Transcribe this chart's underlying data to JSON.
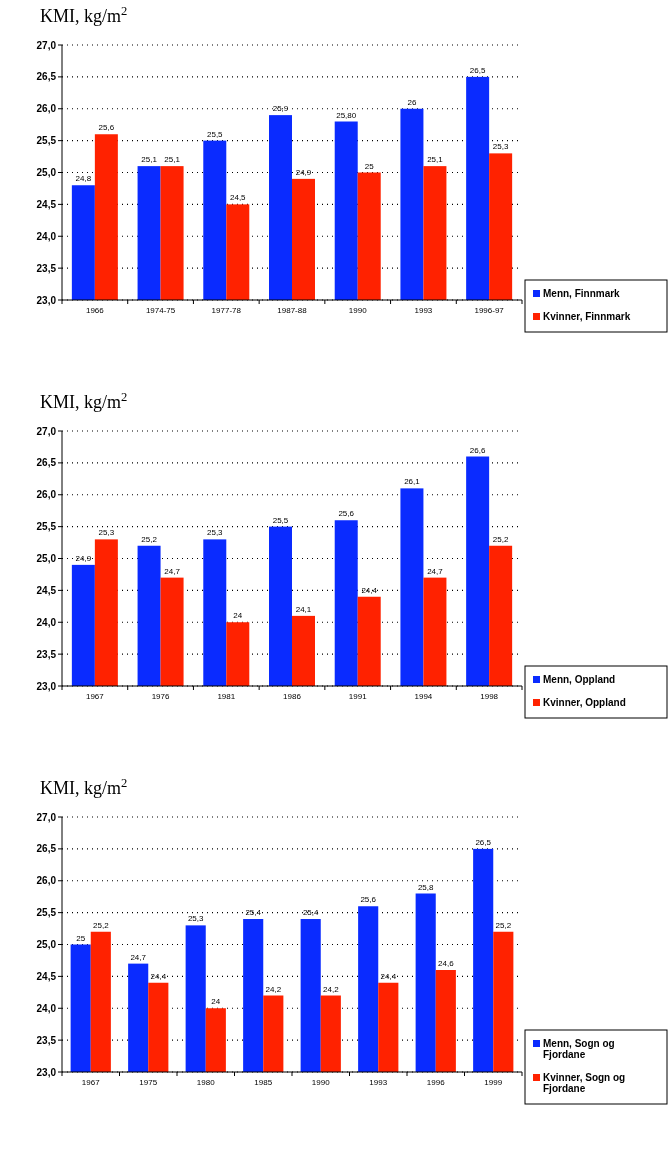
{
  "chart_data": [
    {
      "type": "bar",
      "title": "KMI, kg/m$^{2}$",
      "categories": [
        "1966",
        "1974-75",
        "1977-78",
        "1987-88",
        "1990",
        "1993",
        "1996-97"
      ],
      "series": [
        {
          "name": "Menn, Finnmark",
          "color": "#0a2bff",
          "values": [
            24.8,
            25.1,
            25.5,
            25.9,
            25.8,
            26,
            26.5
          ],
          "value_labels": [
            "24,8",
            "25,1",
            "25,5",
            "25,9",
            "25,80",
            "26",
            "26,5"
          ]
        },
        {
          "name": "Kvinner, Finnmark",
          "color": "#ff2200",
          "values": [
            25.6,
            25.1,
            24.5,
            24.9,
            25,
            25.1,
            25.3
          ],
          "value_labels": [
            "25,6",
            "25,1",
            "24,5",
            "24,9",
            "25",
            "25,1",
            "25,3"
          ]
        }
      ],
      "ylim": [
        23,
        27
      ],
      "yticks": [
        {
          "value": 23,
          "label": "23,0"
        },
        {
          "value": 23.5,
          "label": "23,5"
        },
        {
          "value": 24,
          "label": "24,0"
        },
        {
          "value": 24.5,
          "label": "24,5"
        },
        {
          "value": 25,
          "label": "25,0"
        },
        {
          "value": 25.5,
          "label": "25,5"
        },
        {
          "value": 26,
          "label": "26,0"
        },
        {
          "value": 26.5,
          "label": "26,5"
        },
        {
          "value": 27,
          "label": "27,0"
        }
      ],
      "grid": "y",
      "legend": "bottom right"
    },
    {
      "type": "bar",
      "title": "KMI, kg/m$^{2}$",
      "categories": [
        "1967",
        "1976",
        "1981",
        "1986",
        "1991",
        "1994",
        "1998"
      ],
      "series": [
        {
          "name": "Menn, Oppland",
          "color": "#0a2bff",
          "values": [
            24.9,
            25.2,
            25.3,
            25.5,
            25.6,
            26.1,
            26.6
          ],
          "value_labels": [
            "24,9",
            "25,2",
            "25,3",
            "25,5",
            "25,6",
            "26,1",
            "26,6"
          ]
        },
        {
          "name": "Kvinner, Oppland",
          "color": "#ff2200",
          "values": [
            25.3,
            24.7,
            24,
            24.1,
            24.4,
            24.7,
            25.2
          ],
          "value_labels": [
            "25,3",
            "24,7",
            "24",
            "24,1",
            "24,4",
            "24,7",
            "25,2"
          ]
        }
      ],
      "ylim": [
        23,
        27
      ],
      "yticks": [
        {
          "value": 23,
          "label": "23,0"
        },
        {
          "value": 23.5,
          "label": "23,5"
        },
        {
          "value": 24,
          "label": "24,0"
        },
        {
          "value": 24.5,
          "label": "24,5"
        },
        {
          "value": 25,
          "label": "25,0"
        },
        {
          "value": 25.5,
          "label": "25,5"
        },
        {
          "value": 26,
          "label": "26,0"
        },
        {
          "value": 26.5,
          "label": "26,5"
        },
        {
          "value": 27,
          "label": "27,0"
        }
      ],
      "grid": "y",
      "legend": "bottom right"
    },
    {
      "type": "bar",
      "title": "KMI, kg/m$^{2}$",
      "categories": [
        "1967",
        "1975",
        "1980",
        "1985",
        "1990",
        "1993",
        "1996",
        "1999"
      ],
      "series": [
        {
          "name": "Menn, Sogn og Fjordane",
          "color": "#0a2bff",
          "values": [
            25,
            24.7,
            25.3,
            25.4,
            25.4,
            25.6,
            25.8,
            26.5
          ],
          "value_labels": [
            "25",
            "24,7",
            "25,3",
            "25,4",
            "25,4",
            "25,6",
            "25,8",
            "26,5"
          ]
        },
        {
          "name": "Kvinner, Sogn og Fjordane",
          "color": "#ff2200",
          "values": [
            25.2,
            24.4,
            24,
            24.2,
            24.2,
            24.4,
            24.6,
            25.2
          ],
          "value_labels": [
            "25,2",
            "24,4",
            "24",
            "24,2",
            "24,2",
            "24,4",
            "24,6",
            "25,2"
          ]
        }
      ],
      "ylim": [
        23,
        27
      ],
      "yticks": [
        {
          "value": 23,
          "label": "23,0"
        },
        {
          "value": 23.5,
          "label": "23,5"
        },
        {
          "value": 24,
          "label": "24,0"
        },
        {
          "value": 24.5,
          "label": "24,5"
        },
        {
          "value": 25,
          "label": "25,0"
        },
        {
          "value": 25.5,
          "label": "25,5"
        },
        {
          "value": 26,
          "label": "26,0"
        },
        {
          "value": 26.5,
          "label": "26,5"
        },
        {
          "value": 27,
          "label": "27,0"
        }
      ],
      "grid": "y",
      "legend": "bottom right"
    }
  ]
}
